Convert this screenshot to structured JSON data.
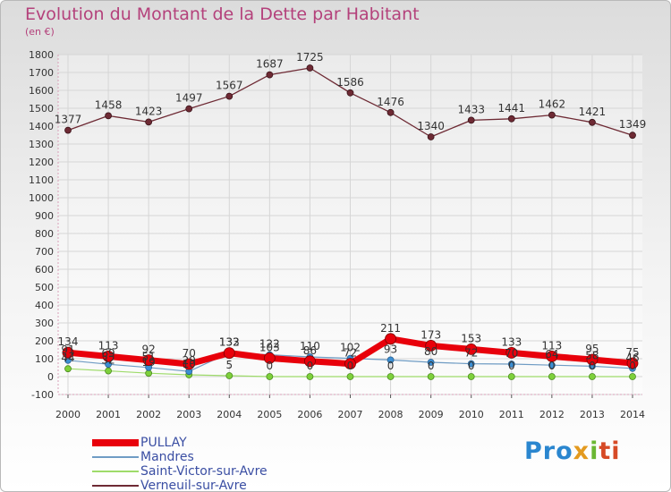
{
  "title": "Evolution du Montant de la Dette par Habitant",
  "unit_label": "(en €)",
  "logo_text": "Proxiti",
  "chart_data": {
    "type": "line",
    "title": "Evolution du Montant de la Dette par Habitant",
    "ylabel": "(en €)",
    "ylim": [
      -100,
      1800
    ],
    "y_ticks": [
      -100,
      0,
      100,
      200,
      300,
      400,
      500,
      600,
      700,
      800,
      900,
      1000,
      1100,
      1200,
      1300,
      1400,
      1500,
      1600,
      1700,
      1800
    ],
    "x": [
      "2000",
      "2001",
      "2002",
      "2003",
      "2004",
      "2005",
      "2006",
      "2007",
      "2008",
      "2009",
      "2010",
      "2011",
      "2012",
      "2013",
      "2014"
    ],
    "legend_position": "bottom-left",
    "series": [
      {
        "name": "PULLAY",
        "color": "#e8000b",
        "values": [
          134,
          113,
          92,
          70,
          132,
          103,
          86,
          72,
          211,
          173,
          153,
          133,
          113,
          95,
          75
        ]
      },
      {
        "name": "Mandres",
        "color": "#6f9cc4",
        "values": [
          91,
          69,
          51,
          29,
          133,
          122,
          110,
          102,
          93,
          80,
          72,
          70,
          64,
          58,
          46
        ]
      },
      {
        "name": "Saint-Victor-sur-Avre",
        "color": "#9edb6a",
        "values": [
          44,
          32,
          19,
          10,
          5,
          0,
          0,
          0,
          0,
          0,
          0,
          0,
          0,
          0,
          0
        ]
      },
      {
        "name": "Verneuil-sur-Avre",
        "color": "#6e2a34",
        "values": [
          1377,
          1458,
          1423,
          1497,
          1567,
          1687,
          1725,
          1586,
          1476,
          1340,
          1433,
          1441,
          1462,
          1421,
          1349
        ]
      }
    ]
  }
}
